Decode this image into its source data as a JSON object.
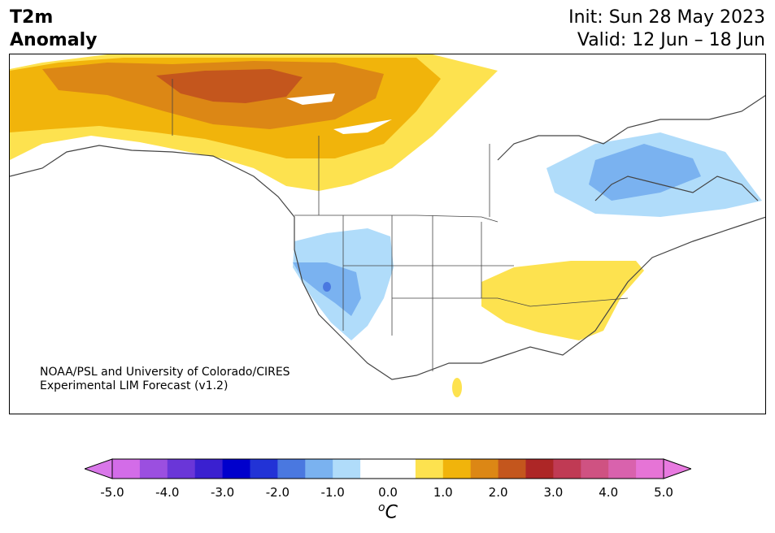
{
  "title": {
    "variable": "T2m",
    "type": "Anomaly",
    "init": "Init: Sun 28 May 2023",
    "valid": "Valid: 12 Jun – 18 Jun"
  },
  "credit": {
    "line1": "NOAA/PSL and University of Colorado/CIRES",
    "line2": "Experimental LIM Forecast (v1.2)"
  },
  "colorbar": {
    "unit_base": "C",
    "unit_sup": "o",
    "ticks": [
      "-5.0",
      "-4.0",
      "-3.0",
      "-2.0",
      "-1.0",
      "0.0",
      "1.0",
      "2.0",
      "3.0",
      "4.0",
      "5.0"
    ],
    "colors": [
      "#d36ce8",
      "#9b4fe0",
      "#6a36d8",
      "#3a20d0",
      "#0000cc",
      "#2233d6",
      "#4a78e0",
      "#7ab2f0",
      "#b0dcfa",
      "#ffffff",
      "#ffffff",
      "#fde24f",
      "#f1b40b",
      "#dc8715",
      "#c4561d",
      "#ad2626",
      "#c03a54",
      "#cf5282",
      "#d962ad",
      "#e674d6"
    ],
    "under_color": "#d977e9",
    "over_color": "#e87ae0"
  },
  "anomaly_regions": [
    {
      "name": "alaska-yukon-warm",
      "level": "+0.5 to +3.0"
    },
    {
      "name": "west-us-cool",
      "level": "-0.5 to -2.0"
    },
    {
      "name": "southeast-us-warm",
      "level": "+0.5 to +1.0"
    },
    {
      "name": "hudson-bay-quebec-cool",
      "level": "-0.5 to -1.5"
    }
  ]
}
